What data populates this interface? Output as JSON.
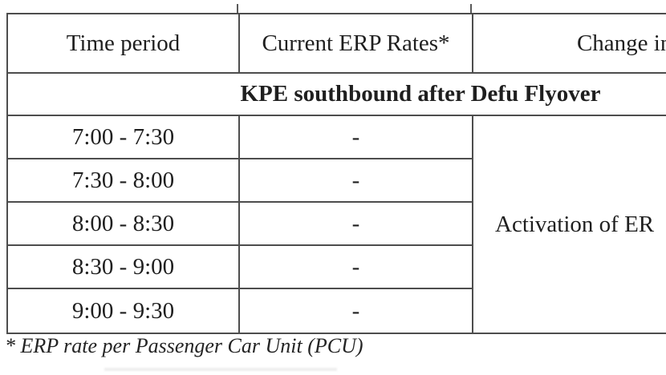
{
  "table": {
    "headers": {
      "time_period": "Time period",
      "current_rates": "Current ERP Rates*",
      "change_in_rates": "Change in Rates"
    },
    "section_title": "KPE southbound after Defu Flyover",
    "rows": [
      {
        "time": "7:00 - 7:30",
        "rate": "-"
      },
      {
        "time": "7:30 - 8:00",
        "rate": "-"
      },
      {
        "time": "8:00 - 8:30",
        "rate": "-"
      },
      {
        "time": "8:30 - 9:00",
        "rate": "-"
      },
      {
        "time": "9:00 - 9:30",
        "rate": "-"
      }
    ],
    "change_note": "Activation of ER"
  },
  "footnote": "* ERP rate per Passenger Car Unit (PCU)",
  "colors": {
    "border_dark": "#4d4d4d",
    "border_light": "#838383",
    "text": "#1f1f1f",
    "background": "#ffffff"
  }
}
